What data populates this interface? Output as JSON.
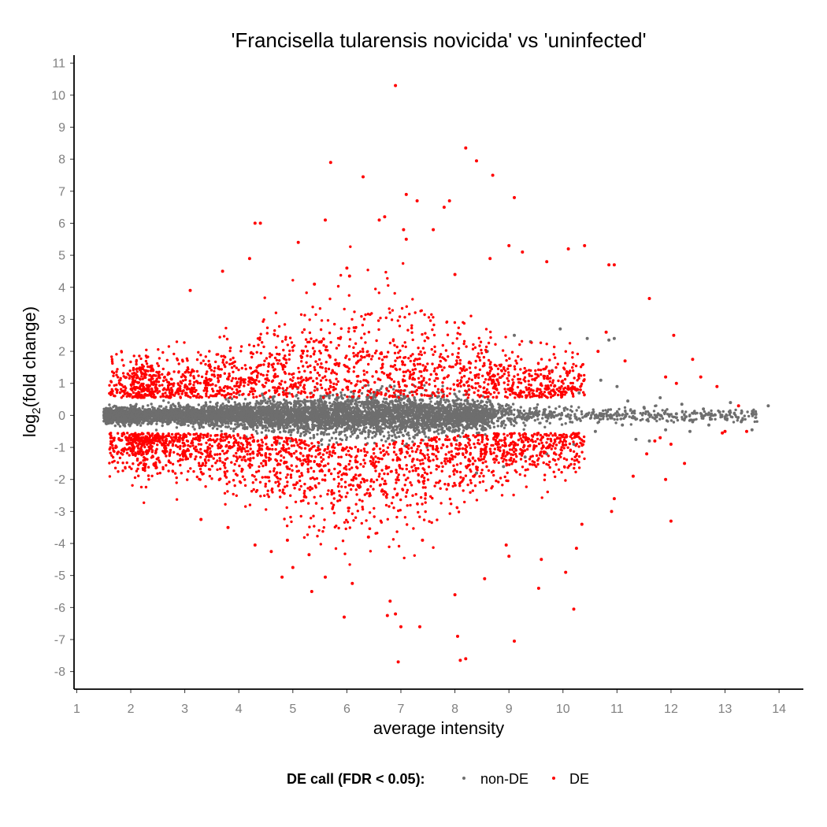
{
  "chart_data": {
    "type": "scatter",
    "title": "'Francisella tularensis novicida' vs 'uninfected'",
    "xlabel": "average intensity",
    "ylabel_main": "log",
    "ylabel_sub": "2",
    "ylabel_rest": "(fold change)",
    "xlim": [
      0.95,
      14.45
    ],
    "ylim": [
      -8.55,
      11.25
    ],
    "x_ticks": [
      "1",
      "2",
      "3",
      "4",
      "5",
      "6",
      "7",
      "8",
      "9",
      "10",
      "11",
      "12",
      "13",
      "14"
    ],
    "y_ticks": [
      "-8",
      "-7",
      "-6",
      "-5",
      "-4",
      "-3",
      "-2",
      "-1",
      "0",
      "1",
      "2",
      "3",
      "4",
      "5",
      "6",
      "7",
      "8",
      "9",
      "10",
      "11"
    ],
    "grid": false,
    "legend": {
      "title": "DE call (FDR < 0.05):",
      "position": "bottom",
      "entries": [
        "non-DE",
        "DE"
      ]
    },
    "colors": {
      "nonDE": "#6e6e6e",
      "DE": "#ff0000"
    },
    "series": [
      {
        "name": "non-DE",
        "points": [
          [
            13.8,
            0.3
          ],
          [
            13.5,
            0.05
          ],
          [
            13.3,
            -0.2
          ],
          [
            13.1,
            0.4
          ],
          [
            12.9,
            0.1
          ],
          [
            12.7,
            -0.3
          ],
          [
            12.6,
            0.2
          ],
          [
            12.4,
            -0.2
          ],
          [
            12.2,
            0.35
          ],
          [
            12.1,
            0.05
          ],
          [
            11.9,
            -0.45
          ],
          [
            11.8,
            0.55
          ],
          [
            11.7,
            -0.1
          ],
          [
            11.5,
            0.25
          ],
          [
            11.35,
            -0.75
          ],
          [
            11.2,
            0.45
          ],
          [
            11.1,
            -0.3
          ],
          [
            11.0,
            0.9
          ],
          [
            10.95,
            2.4
          ],
          [
            10.85,
            2.35
          ],
          [
            10.7,
            1.1
          ],
          [
            10.6,
            -0.5
          ],
          [
            10.45,
            2.4
          ],
          [
            10.3,
            0.7
          ],
          [
            10.2,
            -0.9
          ],
          [
            9.95,
            2.7
          ],
          [
            9.8,
            1.4
          ],
          [
            9.7,
            -1.2
          ],
          [
            9.4,
            2.3
          ],
          [
            9.3,
            -1.3
          ],
          [
            9.1,
            2.5
          ],
          [
            8.9,
            -1.6
          ],
          [
            8.6,
            2.0
          ],
          [
            8.4,
            -1.8
          ],
          [
            13.5,
            -0.45
          ],
          [
            12.35,
            -0.5
          ],
          [
            11.6,
            -0.8
          ]
        ]
      },
      {
        "name": "DE",
        "points": [
          [
            6.9,
            10.3
          ],
          [
            8.2,
            8.35
          ],
          [
            5.7,
            7.9
          ],
          [
            8.4,
            7.95
          ],
          [
            8.7,
            7.5
          ],
          [
            6.3,
            7.45
          ],
          [
            7.1,
            6.9
          ],
          [
            7.3,
            6.7
          ],
          [
            9.1,
            6.8
          ],
          [
            7.9,
            6.7
          ],
          [
            7.8,
            6.5
          ],
          [
            5.6,
            6.1
          ],
          [
            6.7,
            6.2
          ],
          [
            6.6,
            6.1
          ],
          [
            4.3,
            6.0
          ],
          [
            4.4,
            6.0
          ],
          [
            7.05,
            5.8
          ],
          [
            7.6,
            5.8
          ],
          [
            5.1,
            5.4
          ],
          [
            10.1,
            5.2
          ],
          [
            10.4,
            5.3
          ],
          [
            9.0,
            5.3
          ],
          [
            9.25,
            5.1
          ],
          [
            8.65,
            4.9
          ],
          [
            9.7,
            4.8
          ],
          [
            10.85,
            4.7
          ],
          [
            10.95,
            4.7
          ],
          [
            4.2,
            4.9
          ],
          [
            7.1,
            5.5
          ],
          [
            11.6,
            3.65
          ],
          [
            3.7,
            4.5
          ],
          [
            8.0,
            4.4
          ],
          [
            5.4,
            4.1
          ],
          [
            6.0,
            4.6
          ],
          [
            6.05,
            4.35
          ],
          [
            3.1,
            3.9
          ],
          [
            12.05,
            2.5
          ],
          [
            12.4,
            1.75
          ],
          [
            12.55,
            1.2
          ],
          [
            12.85,
            0.9
          ],
          [
            13.25,
            0.3
          ],
          [
            13.4,
            -0.5
          ],
          [
            12.95,
            -0.55
          ],
          [
            12.0,
            -3.3
          ],
          [
            12.25,
            -1.5
          ],
          [
            11.9,
            -2.0
          ],
          [
            11.3,
            -1.9
          ],
          [
            10.9,
            -3.0
          ],
          [
            10.35,
            -3.4
          ],
          [
            10.25,
            -4.15
          ],
          [
            10.2,
            -6.05
          ],
          [
            10.05,
            -4.9
          ],
          [
            9.6,
            -4.5
          ],
          [
            9.55,
            -5.4
          ],
          [
            9.1,
            -7.05
          ],
          [
            8.95,
            -4.05
          ],
          [
            9.0,
            -4.4
          ],
          [
            8.2,
            -7.6
          ],
          [
            8.1,
            -7.65
          ],
          [
            8.05,
            -6.9
          ],
          [
            8.0,
            -5.6
          ],
          [
            8.55,
            -5.1
          ],
          [
            7.35,
            -6.6
          ],
          [
            7.0,
            -6.6
          ],
          [
            6.95,
            -7.7
          ],
          [
            6.9,
            -6.2
          ],
          [
            6.8,
            -5.8
          ],
          [
            6.75,
            -6.25
          ],
          [
            5.95,
            -6.3
          ],
          [
            6.1,
            -5.25
          ],
          [
            5.6,
            -5.05
          ],
          [
            5.35,
            -5.5
          ],
          [
            4.8,
            -5.05
          ],
          [
            5.0,
            -4.75
          ],
          [
            4.6,
            -4.25
          ],
          [
            4.3,
            -4.05
          ],
          [
            3.8,
            -3.5
          ],
          [
            3.3,
            -3.25
          ],
          [
            4.9,
            -3.9
          ],
          [
            7.4,
            -3.9
          ],
          [
            6.4,
            -3.8
          ],
          [
            5.3,
            -4.35
          ],
          [
            10.95,
            -2.6
          ],
          [
            11.55,
            -1.2
          ],
          [
            11.8,
            -0.7
          ],
          [
            13.0,
            -0.5
          ],
          [
            12.1,
            1.0
          ],
          [
            11.15,
            1.7
          ],
          [
            10.65,
            2.0
          ],
          [
            10.8,
            2.6
          ],
          [
            11.9,
            1.2
          ],
          [
            12.0,
            -0.9
          ],
          [
            11.7,
            -0.8
          ]
        ]
      }
    ]
  }
}
